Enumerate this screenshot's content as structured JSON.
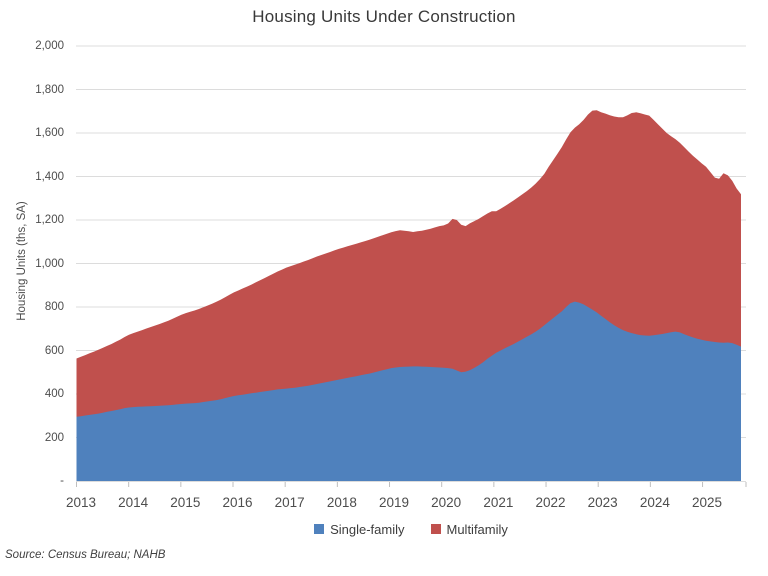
{
  "title": "Housing Units Under Construction",
  "y_axis": {
    "title": "Housing Units (ths, SA)",
    "tick_labels": [
      "2,000",
      "1,800",
      "1,600",
      "1,400",
      "1,200",
      "1,000",
      "800",
      "600",
      "400",
      "200",
      "-"
    ],
    "tick_values": [
      2000,
      1800,
      1600,
      1400,
      1200,
      1000,
      800,
      600,
      400,
      200,
      0
    ]
  },
  "x_axis": {
    "year_labels": [
      "2013",
      "2014",
      "2015",
      "2016",
      "2017",
      "2018",
      "2019",
      "2020",
      "2021",
      "2022",
      "2023",
      "2024",
      "2025"
    ]
  },
  "legend": {
    "items": [
      {
        "label": "Single-family",
        "color": "#4F81BD"
      },
      {
        "label": "Multifamily",
        "color": "#C0504D"
      }
    ]
  },
  "source_note": "Source: Census Bureau; NAHB",
  "colors": {
    "single_family": "#4F81BD",
    "multifamily": "#C0504D",
    "gridline": "#DCDCDC",
    "axis": "#BFBFBF"
  },
  "chart_data": {
    "type": "area",
    "stacked": true,
    "title": "Housing Units Under Construction",
    "xlabel": "",
    "ylabel": "Housing Units (ths, SA)",
    "ylim": [
      0,
      2000
    ],
    "grid": "horizontal",
    "legend_position": "bottom",
    "frequency": "monthly",
    "x_start": "2013-01",
    "x_end": "2025-09",
    "series": [
      {
        "name": "Single-family",
        "color": "#4F81BD",
        "values": [
          295,
          298,
          301,
          304,
          307,
          310,
          314,
          318,
          322,
          326,
          330,
          335,
          338,
          340,
          341,
          342,
          343,
          344,
          345,
          346,
          347,
          348,
          350,
          352,
          354,
          356,
          357,
          358,
          360,
          363,
          366,
          369,
          372,
          376,
          381,
          386,
          391,
          394,
          397,
          400,
          403,
          406,
          409,
          412,
          415,
          418,
          421,
          423,
          425,
          427,
          429,
          432,
          435,
          438,
          442,
          446,
          450,
          454,
          458,
          462,
          466,
          470,
          474,
          478,
          482,
          486,
          490,
          494,
          499,
          504,
          509,
          514,
          519,
          522,
          524,
          525,
          526,
          527,
          527,
          526,
          525,
          524,
          523,
          522,
          521,
          519,
          516,
          508,
          500,
          503,
          510,
          520,
          532,
          546,
          562,
          576,
          590,
          600,
          610,
          620,
          630,
          641,
          652,
          663,
          674,
          686,
          700,
          716,
          732,
          748,
          764,
          780,
          800,
          818,
          825,
          820,
          812,
          800,
          788,
          775,
          760,
          745,
          730,
          716,
          704,
          694,
          686,
          680,
          675,
          671,
          669,
          668,
          670,
          673,
          676,
          680,
          684,
          687,
          683,
          675,
          667,
          660,
          654,
          649,
          645,
          642,
          639,
          637,
          636,
          637,
          634,
          626,
          618
        ]
      },
      {
        "name": "Multifamily",
        "color": "#C0504D",
        "values": [
          268,
          273,
          278,
          283,
          288,
          293,
          298,
          303,
          308,
          314,
          320,
          327,
          334,
          340,
          346,
          352,
          358,
          364,
          370,
          376,
          382,
          389,
          396,
          403,
          410,
          416,
          421,
          426,
          431,
          436,
          441,
          446,
          452,
          458,
          464,
          470,
          476,
          482,
          488,
          494,
          500,
          507,
          514,
          521,
          528,
          535,
          542,
          549,
          556,
          561,
          566,
          570,
          574,
          578,
          582,
          586,
          589,
          592,
          595,
          598,
          601,
          603,
          605,
          607,
          609,
          611,
          613,
          615,
          617,
          619,
          621,
          623,
          625,
          627,
          629,
          626,
          622,
          618,
          621,
          625,
          630,
          636,
          643,
          650,
          654,
          665,
          689,
          692,
          678,
          669,
          675,
          675,
          673,
          672,
          668,
          664,
          650,
          652,
          654,
          657,
          660,
          663,
          666,
          670,
          675,
          681,
          688,
          696,
          712,
          726,
          740,
          755,
          770,
          785,
          800,
          820,
          848,
          885,
          915,
          930,
          935,
          944,
          952,
          960,
          968,
          978,
          995,
          1012,
          1020,
          1020,
          1016,
          1012,
          990,
          967,
          944,
          920,
          901,
          885,
          872,
          860,
          848,
          835,
          824,
          811,
          800,
          778,
          756,
          753,
          779,
          768,
          746,
          719,
          700
        ]
      }
    ]
  }
}
